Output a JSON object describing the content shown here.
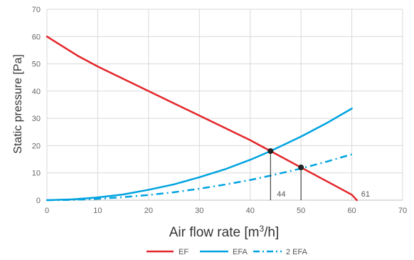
{
  "chart_data": {
    "type": "line",
    "xlabel_parts": [
      "Air flow rate  [m",
      "3",
      "/h]"
    ],
    "ylabel": "Static pressure [Pa]",
    "xlim": [
      0,
      70
    ],
    "ylim": [
      0,
      70
    ],
    "x_ticks": [
      "0",
      "10",
      "20",
      "30",
      "40",
      "50",
      "60",
      "70"
    ],
    "y_ticks": [
      "0",
      "10",
      "20",
      "30",
      "40",
      "50",
      "60",
      "70"
    ],
    "grid": true,
    "legend_position": "bottom",
    "series": [
      {
        "name": "EF",
        "color": "#e3262b",
        "dash": "solid",
        "points": [
          [
            0,
            60
          ],
          [
            3,
            56.5
          ],
          [
            6,
            53
          ],
          [
            10,
            49
          ],
          [
            15,
            44.5
          ],
          [
            20,
            40
          ],
          [
            25,
            35.5
          ],
          [
            30,
            31
          ],
          [
            35,
            26.5
          ],
          [
            40,
            22
          ],
          [
            44,
            18
          ],
          [
            50,
            12
          ],
          [
            55,
            7
          ],
          [
            58,
            4
          ],
          [
            60,
            2
          ],
          [
            60.5,
            1
          ],
          [
            61,
            0
          ]
        ]
      },
      {
        "name": "EFA",
        "color": "#00a3e0",
        "dash": "solid",
        "points": [
          [
            0,
            0
          ],
          [
            5,
            0.3
          ],
          [
            10,
            1.0
          ],
          [
            15,
            2.1
          ],
          [
            20,
            3.8
          ],
          [
            25,
            5.8
          ],
          [
            30,
            8.4
          ],
          [
            35,
            11.3
          ],
          [
            40,
            14.8
          ],
          [
            44,
            18
          ],
          [
            50,
            23.3
          ],
          [
            55,
            28.2
          ],
          [
            60,
            33.6
          ]
        ]
      },
      {
        "name": "2 EFA",
        "color": "#00a3e0",
        "dash": "dashdot",
        "points": [
          [
            0,
            0
          ],
          [
            5,
            0.1
          ],
          [
            10,
            0.5
          ],
          [
            15,
            1.1
          ],
          [
            20,
            1.9
          ],
          [
            25,
            2.9
          ],
          [
            30,
            4.2
          ],
          [
            35,
            5.7
          ],
          [
            40,
            7.4
          ],
          [
            44,
            9.0
          ],
          [
            50,
            11.6
          ],
          [
            55,
            14.1
          ],
          [
            60,
            16.8
          ]
        ]
      }
    ],
    "operating_points": [
      {
        "x": 44,
        "y": 18,
        "label": "44"
      },
      {
        "x": 50,
        "y": 12,
        "label": ""
      }
    ],
    "annotations": [
      {
        "x": 61,
        "y": 0,
        "text": "61"
      }
    ]
  }
}
